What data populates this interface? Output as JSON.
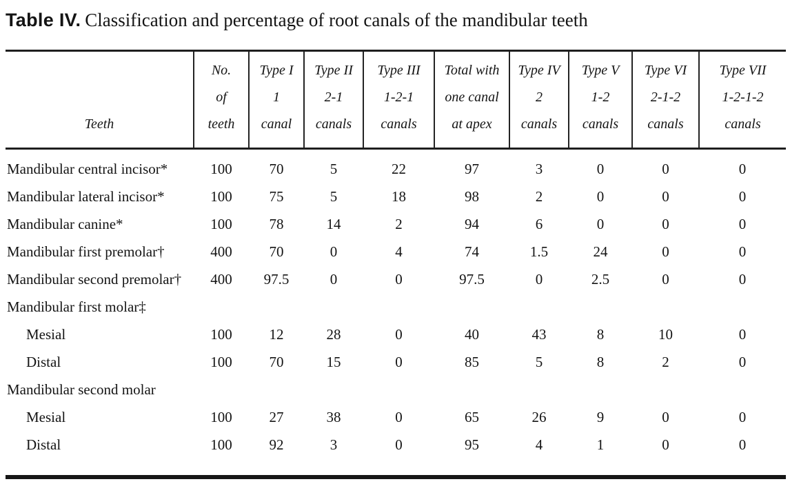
{
  "title": {
    "prefix": "Table IV.",
    "rest": "Classification and percentage of root canals of the mandibular teeth"
  },
  "chart_data": {
    "type": "table",
    "title": "Table IV. Classification and percentage of root canals of the mandibular teeth",
    "columns": [
      {
        "lines": [
          "Teeth"
        ]
      },
      {
        "lines": [
          "No.",
          "of",
          "teeth"
        ]
      },
      {
        "lines": [
          "Type I",
          "1",
          "canal"
        ]
      },
      {
        "lines": [
          "Type II",
          "2-1",
          "canals"
        ]
      },
      {
        "lines": [
          "Type III",
          "1-2-1",
          "canals"
        ]
      },
      {
        "lines": [
          "Total with",
          "one canal",
          "at apex"
        ]
      },
      {
        "lines": [
          "Type IV",
          "2",
          "canals"
        ]
      },
      {
        "lines": [
          "Type V",
          "1-2",
          "canals"
        ]
      },
      {
        "lines": [
          "Type VI",
          "2-1-2",
          "canals"
        ]
      },
      {
        "lines": [
          "Type VII",
          "1-2-1-2",
          "canals"
        ]
      }
    ],
    "rows": [
      {
        "label": "Mandibular central incisor*",
        "indent": false,
        "values": [
          "100",
          "70",
          "5",
          "22",
          "97",
          "3",
          "0",
          "0",
          "0"
        ]
      },
      {
        "label": "Mandibular lateral incisor*",
        "indent": false,
        "values": [
          "100",
          "75",
          "5",
          "18",
          "98",
          "2",
          "0",
          "0",
          "0"
        ]
      },
      {
        "label": "Mandibular canine*",
        "indent": false,
        "values": [
          "100",
          "78",
          "14",
          "2",
          "94",
          "6",
          "0",
          "0",
          "0"
        ]
      },
      {
        "label": "Mandibular first premolar†",
        "indent": false,
        "values": [
          "400",
          "70",
          "0",
          "4",
          "74",
          "1.5",
          "24",
          "0",
          "0"
        ]
      },
      {
        "label": "Mandibular second premolar†",
        "indent": false,
        "values": [
          "400",
          "97.5",
          "0",
          "0",
          "97.5",
          "0",
          "2.5",
          "0",
          "0"
        ]
      },
      {
        "label": "Mandibular first molar‡",
        "indent": false,
        "values": [
          "",
          "",
          "",
          "",
          "",
          "",
          "",
          "",
          ""
        ]
      },
      {
        "label": "Mesial",
        "indent": true,
        "values": [
          "100",
          "12",
          "28",
          "0",
          "40",
          "43",
          "8",
          "10",
          "0"
        ]
      },
      {
        "label": "Distal",
        "indent": true,
        "values": [
          "100",
          "70",
          "15",
          "0",
          "85",
          "5",
          "8",
          "2",
          "0"
        ]
      },
      {
        "label": "Mandibular second molar",
        "indent": false,
        "values": [
          "",
          "",
          "",
          "",
          "",
          "",
          "",
          "",
          ""
        ]
      },
      {
        "label": "Mesial",
        "indent": true,
        "values": [
          "100",
          "27",
          "38",
          "0",
          "65",
          "26",
          "9",
          "0",
          "0"
        ]
      },
      {
        "label": "Distal",
        "indent": true,
        "values": [
          "100",
          "92",
          "3",
          "0",
          "95",
          "4",
          "1",
          "0",
          "0"
        ]
      }
    ]
  }
}
